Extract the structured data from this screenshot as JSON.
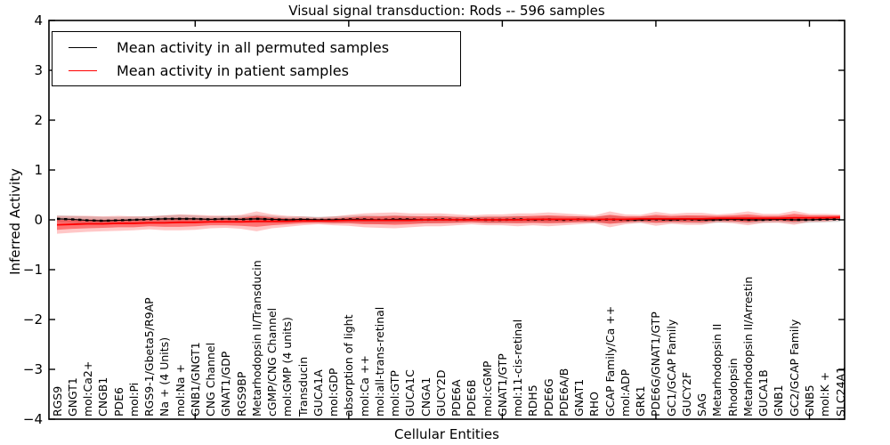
{
  "figure": {
    "title": "Visual signal transduction: Rods -- 596 samples",
    "xlabel": "Cellular Entities",
    "ylabel": "Inferred Activity"
  },
  "legend": {
    "entries": [
      {
        "label": "Mean activity in all permuted samples",
        "color": "#000000"
      },
      {
        "label": "Mean activity in patient samples",
        "color": "#ff0000"
      }
    ]
  },
  "colors": {
    "permuted_line": "#000000",
    "patient_line": "#ff0000",
    "permuted_band": "#aaaaaa",
    "patient_band": "#ff0000",
    "axis": "#000000",
    "background": "#ffffff"
  },
  "chart_data": {
    "type": "line",
    "title": "Visual signal transduction: Rods -- 596 samples",
    "xlabel": "Cellular Entities",
    "ylabel": "Inferred Activity",
    "ylim": [
      -4,
      4
    ],
    "y_ticks": [
      4,
      3,
      2,
      1,
      0,
      -1,
      -2,
      -3,
      -4
    ],
    "y_tick_labels": [
      "4",
      "3",
      "2",
      "1",
      "0",
      "−1",
      "−2",
      "−3",
      "−4"
    ],
    "x_major_tick_indices": [
      9,
      19,
      29,
      39,
      49
    ],
    "grid": false,
    "legend_position": "upper left",
    "categories": [
      "RGS9",
      "GNGT1",
      "mol:Ca2+",
      "CNGB1",
      "PDE6",
      "mol:Pi",
      "RGS9-1/Gbeta5/R9AP",
      "Na + (4 Units)",
      "mol:Na +",
      "GNB1/GNGT1",
      "CNG Channel",
      "GNAT1/GDP",
      "RGS9BP",
      "Metarhodopsin II/Transducin",
      "cGMP/CNG Channel",
      "mol:GMP (4 units)",
      "Transducin",
      "GUCA1A",
      "mol:GDP",
      "absorption of light",
      "mol:Ca ++",
      "mol:all-trans-retinal",
      "mol:GTP",
      "GUCA1C",
      "CNGA1",
      "GUCY2D",
      "PDE6A",
      "PDE6B",
      "mol:cGMP",
      "GNAT1/GTP",
      "mol:11-cis-retinal",
      "RDH5",
      "PDE6G",
      "PDE6A/B",
      "GNAT1",
      "RHO",
      "GCAP Family/Ca ++",
      "mol:ADP",
      "GRK1",
      "PDE6G/GNAT1/GTP",
      "GC1/GCAP Family",
      "GUCY2F",
      "SAG",
      "Metarhodopsin II",
      "Rhodopsin",
      "Metarhodopsin II/Arrestin",
      "GUCA1B",
      "GNB1",
      "GC2/GCAP Family",
      "GNB5",
      "mol:K +",
      "SLC24A1"
    ],
    "series": [
      {
        "name": "Mean activity in all permuted samples",
        "color": "#000000",
        "values": [
          0.02,
          0.01,
          -0.01,
          -0.02,
          -0.01,
          0.0,
          0.01,
          0.02,
          0.02,
          0.02,
          0.01,
          0.02,
          0.01,
          0.02,
          0.01,
          0.0,
          0.01,
          0.0,
          0.0,
          0.01,
          0.01,
          0.0,
          0.01,
          0.01,
          0.0,
          0.01,
          0.0,
          0.01,
          0.0,
          0.0,
          0.01,
          0.0,
          0.01,
          0.0,
          0.01,
          0.0,
          0.01,
          0.0,
          0.0,
          0.01,
          0.0,
          0.01,
          0.0,
          0.0,
          0.01,
          0.0,
          0.0,
          0.01,
          0.0,
          0.0,
          0.01,
          0.01
        ],
        "band_halfwidth": [
          0.07,
          0.07,
          0.08,
          0.08,
          0.07,
          0.07,
          0.06,
          0.07,
          0.08,
          0.07,
          0.06,
          0.06,
          0.07,
          0.08,
          0.07,
          0.06,
          0.06,
          0.06,
          0.07,
          0.07,
          0.08,
          0.08,
          0.08,
          0.07,
          0.07,
          0.07,
          0.06,
          0.06,
          0.07,
          0.07,
          0.07,
          0.06,
          0.07,
          0.06,
          0.06,
          0.06,
          0.08,
          0.06,
          0.06,
          0.07,
          0.06,
          0.07,
          0.07,
          0.06,
          0.06,
          0.07,
          0.06,
          0.06,
          0.07,
          0.06,
          0.06,
          0.05
        ]
      },
      {
        "name": "Mean activity in patient samples",
        "color": "#ff0000",
        "values": [
          -0.1,
          -0.09,
          -0.08,
          -0.08,
          -0.07,
          -0.07,
          -0.06,
          -0.06,
          -0.05,
          -0.05,
          -0.04,
          -0.04,
          -0.04,
          -0.03,
          -0.03,
          -0.03,
          -0.02,
          -0.02,
          -0.02,
          -0.01,
          -0.01,
          -0.01,
          -0.01,
          -0.01,
          0.0,
          0.0,
          0.0,
          0.0,
          0.0,
          0.0,
          0.0,
          0.01,
          0.01,
          0.01,
          0.01,
          0.01,
          0.01,
          0.01,
          0.02,
          0.02,
          0.02,
          0.02,
          0.02,
          0.03,
          0.03,
          0.03,
          0.03,
          0.03,
          0.04,
          0.04,
          0.04,
          0.05
        ],
        "band_inner_halfwidth": [
          0.1,
          0.09,
          0.09,
          0.08,
          0.08,
          0.08,
          0.07,
          0.08,
          0.09,
          0.08,
          0.07,
          0.07,
          0.08,
          0.11,
          0.08,
          0.06,
          0.05,
          0.04,
          0.05,
          0.06,
          0.08,
          0.08,
          0.09,
          0.08,
          0.07,
          0.07,
          0.06,
          0.05,
          0.06,
          0.06,
          0.07,
          0.07,
          0.08,
          0.07,
          0.06,
          0.05,
          0.09,
          0.06,
          0.05,
          0.08,
          0.06,
          0.07,
          0.07,
          0.05,
          0.06,
          0.08,
          0.05,
          0.05,
          0.08,
          0.05,
          0.05,
          0.04
        ],
        "band_outer_halfwidth": [
          0.18,
          0.17,
          0.16,
          0.15,
          0.15,
          0.14,
          0.13,
          0.15,
          0.16,
          0.15,
          0.13,
          0.12,
          0.14,
          0.2,
          0.14,
          0.11,
          0.09,
          0.07,
          0.09,
          0.11,
          0.14,
          0.15,
          0.16,
          0.14,
          0.13,
          0.13,
          0.11,
          0.09,
          0.11,
          0.11,
          0.13,
          0.12,
          0.14,
          0.12,
          0.1,
          0.08,
          0.16,
          0.1,
          0.08,
          0.14,
          0.1,
          0.12,
          0.12,
          0.08,
          0.1,
          0.14,
          0.09,
          0.09,
          0.14,
          0.08,
          0.08,
          0.06
        ]
      }
    ]
  }
}
